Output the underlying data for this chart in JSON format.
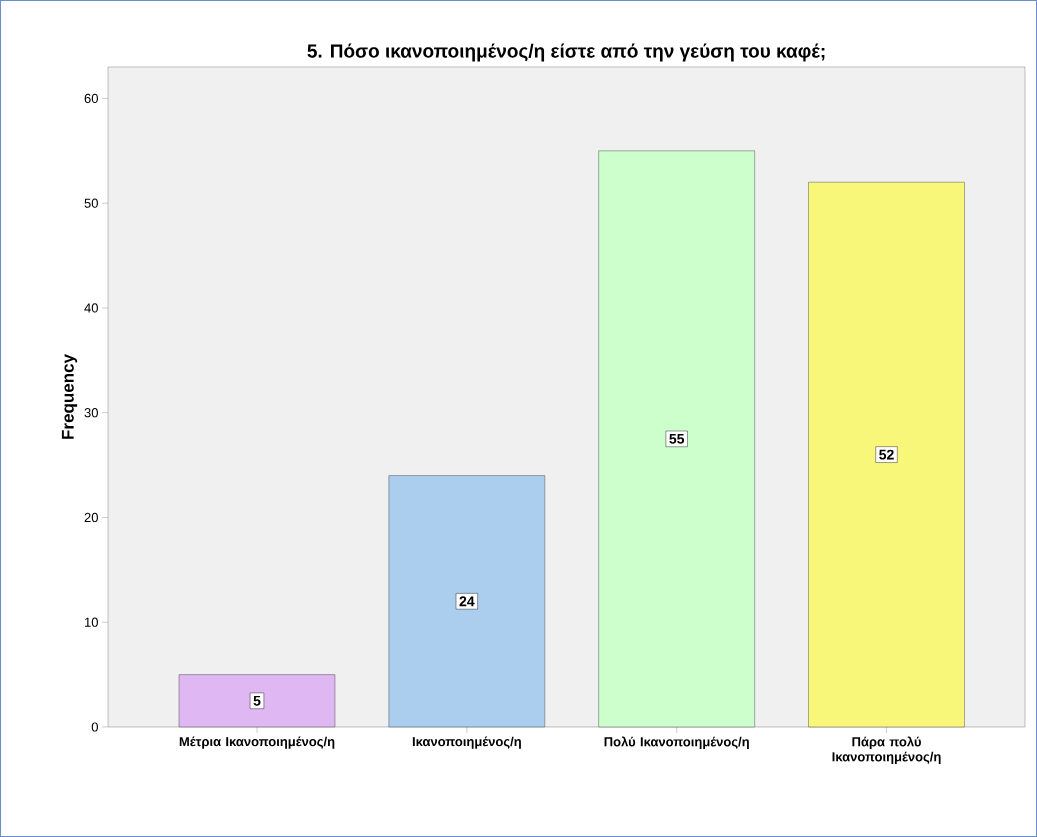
{
  "chart_data": {
    "type": "bar",
    "title": "5. Πόσο ικανοποιημένος/η είστε από την γεύση του καφέ;",
    "ylabel": "Frequency",
    "categories": [
      "Μέτρια Ικανοποιημένος/η",
      "Ικανοποιημένος/η",
      "Πολύ Ικανοποιημένος/η",
      "Πάρα πολύ Ικανοποιημένος/η"
    ],
    "values": [
      5,
      24,
      55,
      52
    ],
    "colors": [
      "#dfb7f2",
      "#abcdee",
      "#ccffcc",
      "#f9f77a"
    ],
    "ylim": [
      0,
      63
    ],
    "yticks": [
      0,
      10,
      20,
      30,
      40,
      50,
      60
    ],
    "data_labels": true,
    "grid": false
  }
}
